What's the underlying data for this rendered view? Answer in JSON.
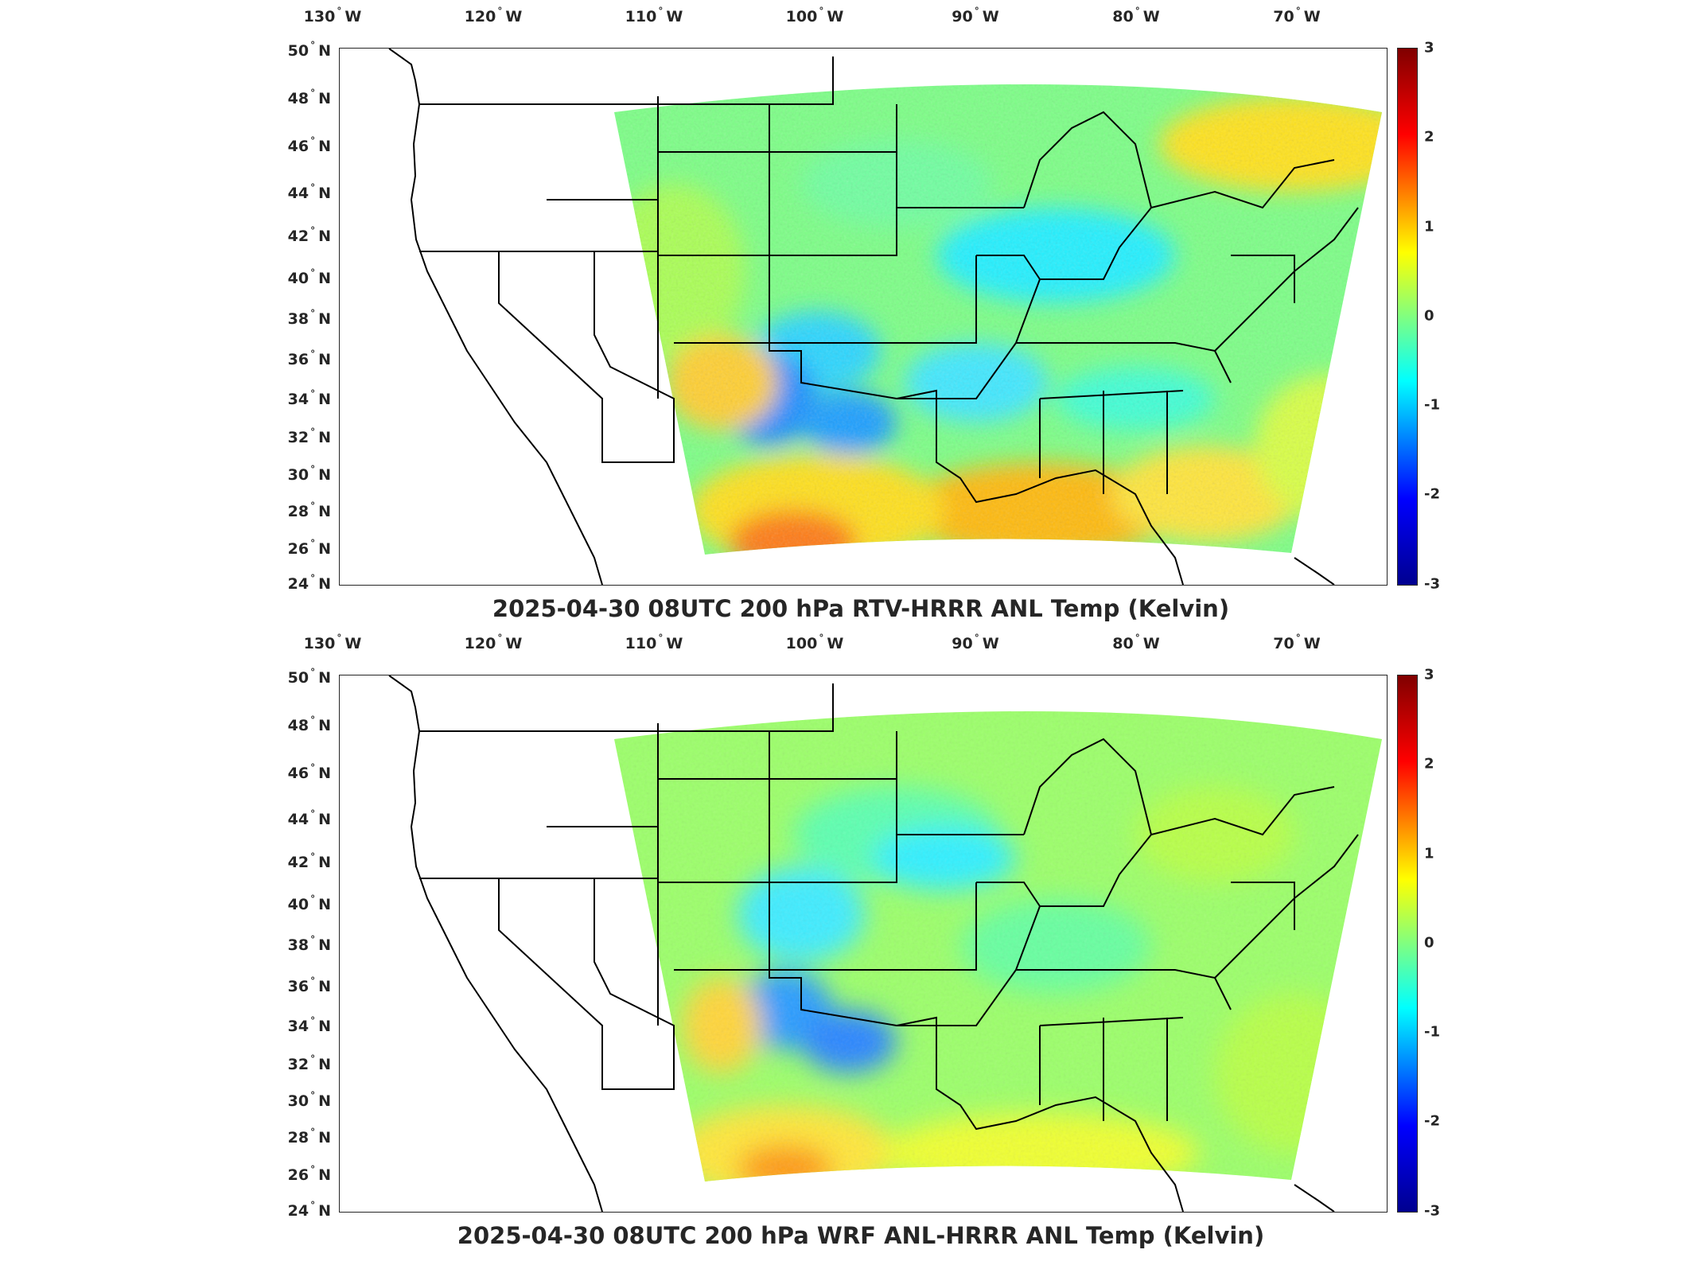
{
  "lon_labels": [
    {
      "num": "130",
      "hem": "W"
    },
    {
      "num": "120",
      "hem": "W"
    },
    {
      "num": "110",
      "hem": "W"
    },
    {
      "num": "100",
      "hem": "W"
    },
    {
      "num": "90",
      "hem": "W"
    },
    {
      "num": "80",
      "hem": "W"
    },
    {
      "num": "70",
      "hem": "W"
    }
  ],
  "lat_labels": [
    {
      "num": "50",
      "hem": "N"
    },
    {
      "num": "48",
      "hem": "N"
    },
    {
      "num": "46",
      "hem": "N"
    },
    {
      "num": "44",
      "hem": "N"
    },
    {
      "num": "42",
      "hem": "N"
    },
    {
      "num": "40",
      "hem": "N"
    },
    {
      "num": "38",
      "hem": "N"
    },
    {
      "num": "36",
      "hem": "N"
    },
    {
      "num": "34",
      "hem": "N"
    },
    {
      "num": "32",
      "hem": "N"
    },
    {
      "num": "30",
      "hem": "N"
    },
    {
      "num": "28",
      "hem": "N"
    },
    {
      "num": "26",
      "hem": "N"
    },
    {
      "num": "24",
      "hem": "N"
    }
  ],
  "colorbar": {
    "ticks": [
      "3",
      "2",
      "1",
      "0",
      "-1",
      "-2",
      "-3"
    ],
    "range": [
      -3,
      3
    ],
    "colormap": "jet",
    "colors": [
      "#00008f",
      "#0000ff",
      "#00ffff",
      "#80ff80",
      "#ffff00",
      "#ff0000",
      "#800000"
    ]
  },
  "panels": [
    {
      "title": "2025-04-30 08UTC 200 hPa RTV-HRRR ANL Temp (Kelvin)",
      "field": "rtv"
    },
    {
      "title": "2025-04-30 08UTC 200 hPa WRF ANL-HRRR ANL Temp (Kelvin)",
      "field": "wrf"
    }
  ],
  "colors": {
    "axis": "#262626",
    "coastline": "#000000"
  }
}
